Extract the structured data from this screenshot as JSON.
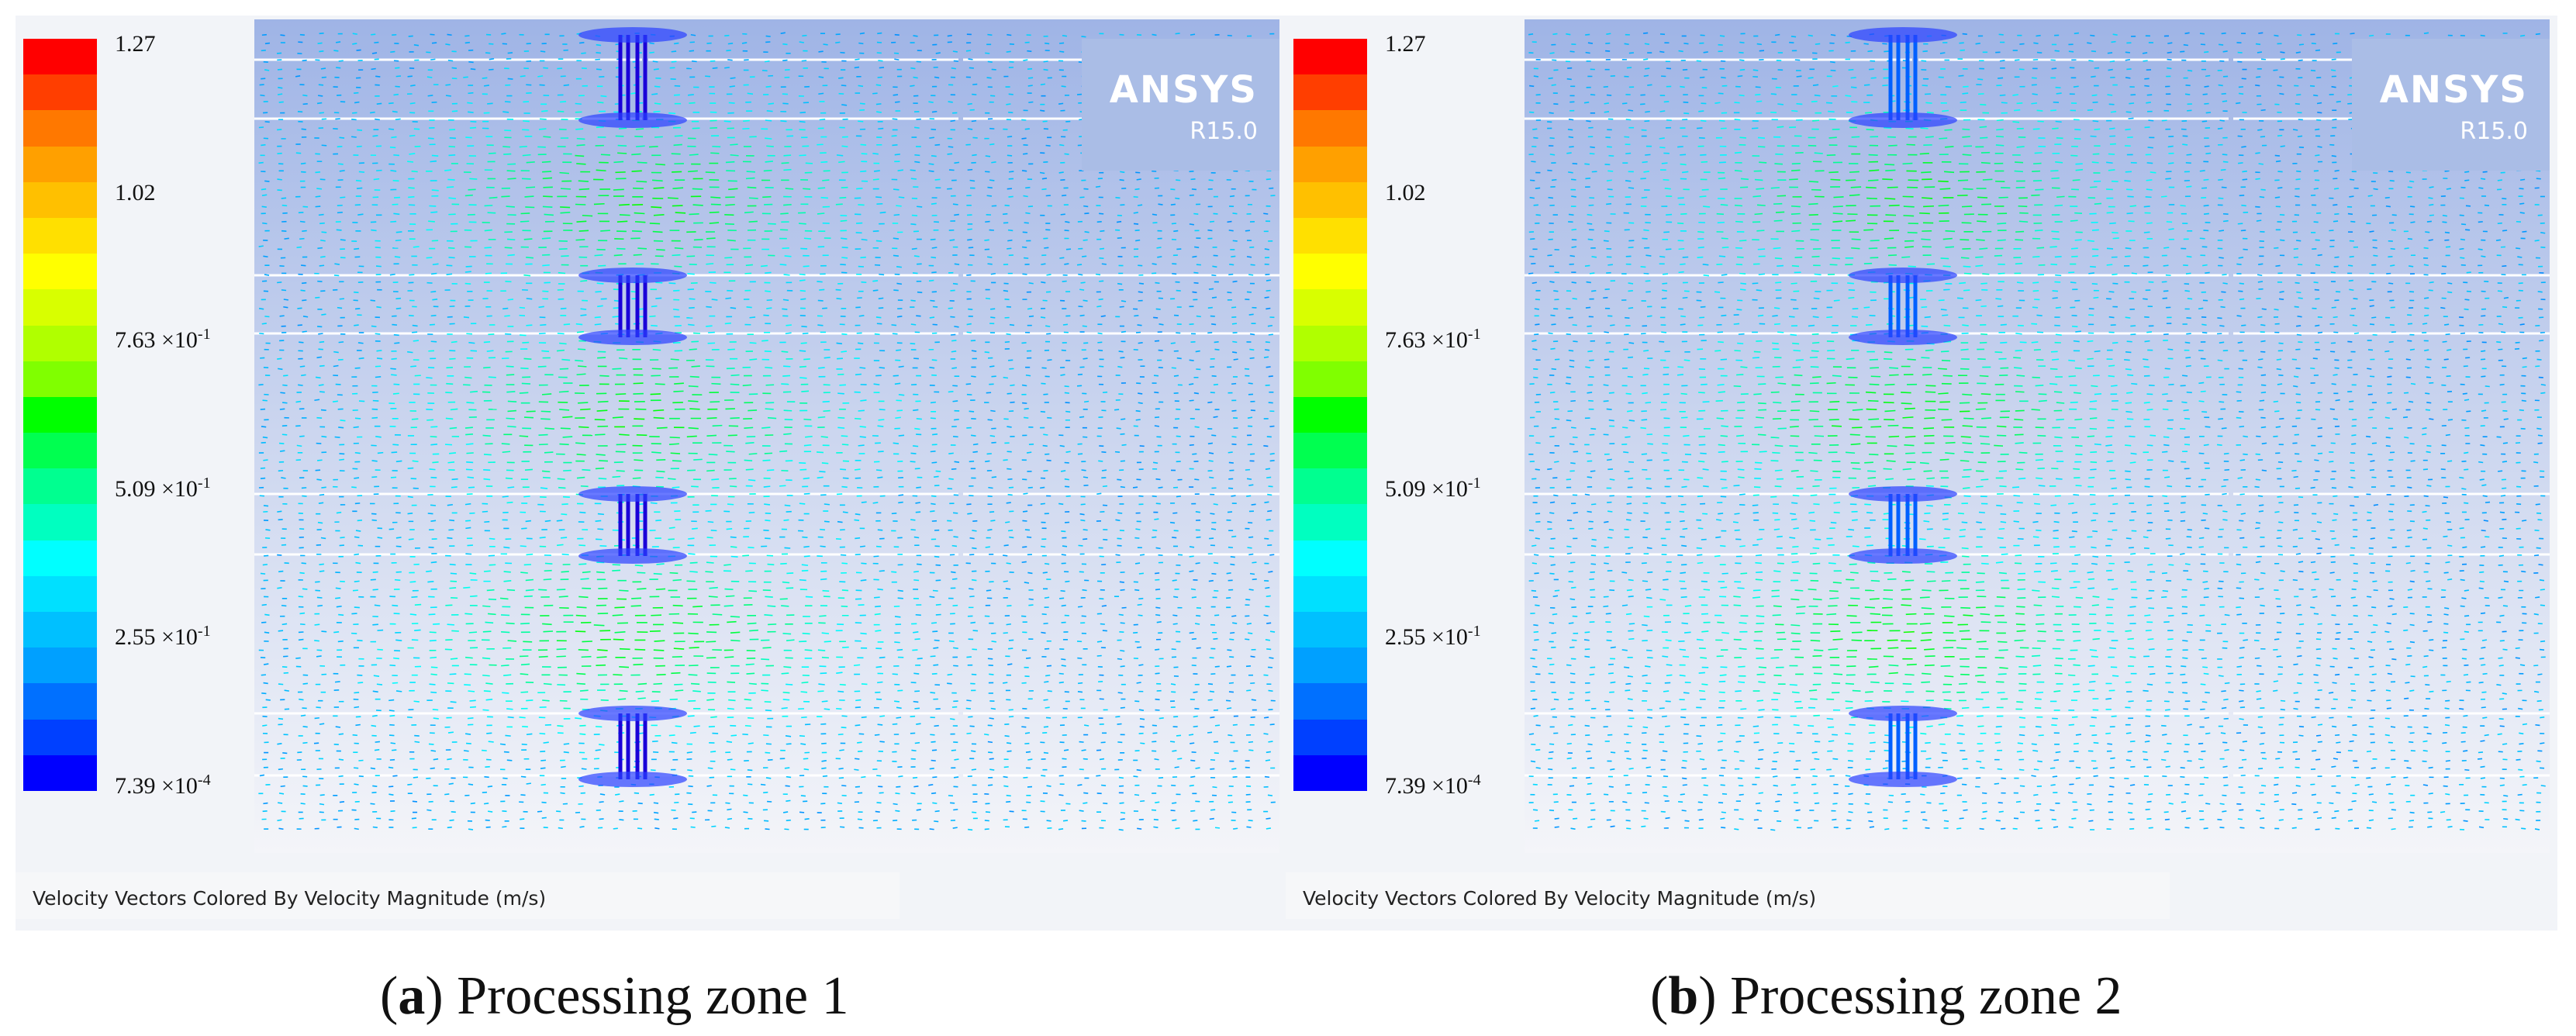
{
  "panels": [
    {
      "id": "a",
      "logo": {
        "brand": "ANSYS",
        "version": "R15.0"
      },
      "legend": {
        "colors": [
          "#ff0000",
          "#ff3e00",
          "#ff7800",
          "#ffa000",
          "#ffc000",
          "#ffe000",
          "#ffff00",
          "#d8ff00",
          "#b0ff00",
          "#80ff00",
          "#00ff00",
          "#00ff50",
          "#00ff90",
          "#00ffc0",
          "#00ffff",
          "#00e0ff",
          "#00c0ff",
          "#00a0ff",
          "#0070ff",
          "#0040ff",
          "#0000ff"
        ],
        "labels": [
          {
            "mantissa": "1.27",
            "exp": ""
          },
          {
            "mantissa": "1.02",
            "exp": ""
          },
          {
            "mantissa": "7.63 ×10",
            "exp": "-1"
          },
          {
            "mantissa": "5.09 ×10",
            "exp": "-1"
          },
          {
            "mantissa": "2.55 ×10",
            "exp": "-1"
          },
          {
            "mantissa": "7.39 ×10",
            "exp": "-4"
          }
        ]
      },
      "caption": "Velocity Vectors Colored By Velocity Magnitude (m/s)",
      "subcaption": {
        "letter": "a",
        "text": "Processing zone 1"
      }
    },
    {
      "id": "b",
      "logo": {
        "brand": "ANSYS",
        "version": "R15.0"
      },
      "legend": {
        "colors": [
          "#ff0000",
          "#ff3e00",
          "#ff7800",
          "#ffa000",
          "#ffc000",
          "#ffe000",
          "#ffff00",
          "#d8ff00",
          "#b0ff00",
          "#80ff00",
          "#00ff00",
          "#00ff50",
          "#00ff90",
          "#00ffc0",
          "#00ffff",
          "#00e0ff",
          "#00c0ff",
          "#00a0ff",
          "#0070ff",
          "#0040ff",
          "#0000ff"
        ],
        "labels": [
          {
            "mantissa": "1.27",
            "exp": ""
          },
          {
            "mantissa": "1.02",
            "exp": ""
          },
          {
            "mantissa": "7.63 ×10",
            "exp": "-1"
          },
          {
            "mantissa": "5.09 ×10",
            "exp": "-1"
          },
          {
            "mantissa": "2.55 ×10",
            "exp": "-1"
          },
          {
            "mantissa": "7.39 ×10",
            "exp": "-4"
          }
        ]
      },
      "caption": "Velocity Vectors Colored By Velocity Magnitude (m/s)",
      "subcaption": {
        "letter": "b",
        "text": "Processing zone 2"
      }
    }
  ]
}
